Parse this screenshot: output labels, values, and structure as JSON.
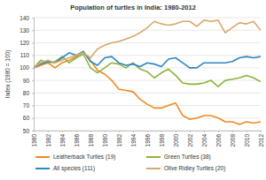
{
  "chart_data": {
    "type": "line",
    "title": "Population of turtles in India: 1980-2012",
    "ylabel": "Index (1980 = 100)",
    "x": [
      1980,
      1981,
      1982,
      1983,
      1984,
      1985,
      1986,
      1987,
      1988,
      1989,
      1990,
      1991,
      1992,
      1993,
      1994,
      1995,
      1996,
      1997,
      1998,
      1999,
      2000,
      2001,
      2002,
      2003,
      2004,
      2005,
      2006,
      2007,
      2008,
      2009,
      2010,
      2011,
      2012
    ],
    "xlim": [
      1980,
      2012
    ],
    "xticks": [
      1980,
      1982,
      1984,
      1986,
      1988,
      1990,
      1992,
      1994,
      1996,
      1998,
      2000,
      2002,
      2004,
      2006,
      2008,
      2010,
      2012
    ],
    "ylim": [
      50,
      140
    ],
    "yticks": [
      50,
      60,
      70,
      80,
      90,
      100,
      110,
      120,
      130,
      140
    ],
    "grid": true,
    "legend": "bottom",
    "series": [
      {
        "name": "Leatherback Turtles (19)",
        "color": "#f0891f",
        "values": [
          100,
          102,
          104,
          100,
          104,
          106,
          109,
          113,
          106,
          98,
          95,
          90,
          83,
          82,
          81,
          75,
          71,
          68,
          68,
          70,
          72,
          62,
          59,
          60,
          62,
          62,
          60,
          57,
          57,
          55,
          57,
          56,
          57
        ]
      },
      {
        "name": "Green Turtles (38)",
        "color": "#8db33a",
        "values": [
          100,
          106,
          104,
          105,
          109,
          104,
          108,
          111,
          100,
          96,
          100,
          104,
          103,
          100,
          104,
          99,
          97,
          92,
          96,
          99,
          94,
          88,
          87,
          87,
          88,
          90,
          85,
          90,
          91,
          92,
          94,
          92,
          89
        ]
      },
      {
        "name": "All species (111)",
        "color": "#2e86c1",
        "values": [
          100,
          103,
          105,
          104,
          108,
          112,
          110,
          113,
          105,
          102,
          108,
          109,
          104,
          102,
          103,
          101,
          104,
          103,
          101,
          107,
          108,
          104,
          100,
          100,
          104,
          104,
          104,
          104,
          105,
          108,
          109,
          108,
          109
        ]
      },
      {
        "name": "Olive Ridley Turtles (20)",
        "color": "#d9a868",
        "values": [
          100,
          104,
          106,
          104,
          106,
          108,
          110,
          112,
          108,
          115,
          118,
          120,
          121,
          123,
          125,
          128,
          132,
          137,
          135,
          134,
          135,
          137,
          137,
          133,
          138,
          137,
          138,
          128,
          132,
          136,
          135,
          137,
          130
        ]
      }
    ]
  }
}
